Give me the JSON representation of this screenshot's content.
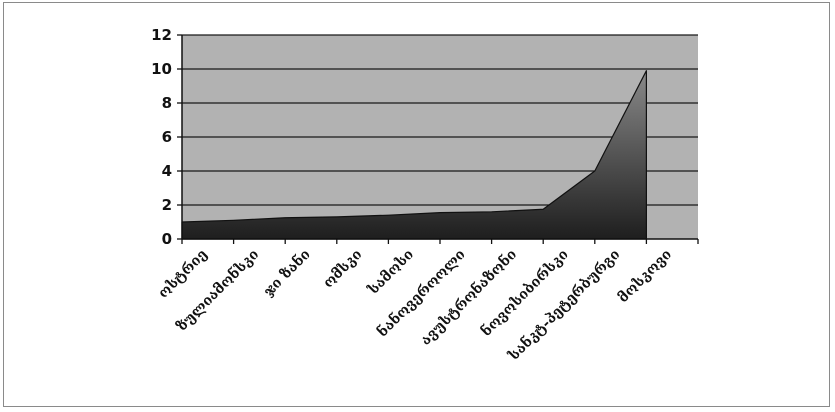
{
  "chart_data": {
    "type": "area",
    "categories": [
      "ოსტრიე",
      "ზულიამონსკი",
      "ჯი ზანი",
      "ომსკი",
      "სამოსი",
      "ნანოვეროოლი",
      "ავუსტრონაზონი",
      "ნოვოსიბირსკი",
      "სანკტ-პეტერბურგი",
      "მოსკოვი"
    ],
    "series": [
      {
        "values": [
          1.0,
          1.1,
          1.25,
          1.3,
          1.4,
          1.55,
          1.6,
          1.75,
          4.0,
          9.9
        ]
      }
    ],
    "ylim": [
      0,
      12
    ],
    "yticks": [
      0,
      2,
      4,
      6,
      8,
      10,
      12
    ],
    "grid": true,
    "legend": "none",
    "colors": {
      "plot_background": "#b2b2b2",
      "gridline": "#1a1a1a",
      "area_top": "#8a8a8a",
      "area_bottom": "#1e1e1e"
    }
  }
}
